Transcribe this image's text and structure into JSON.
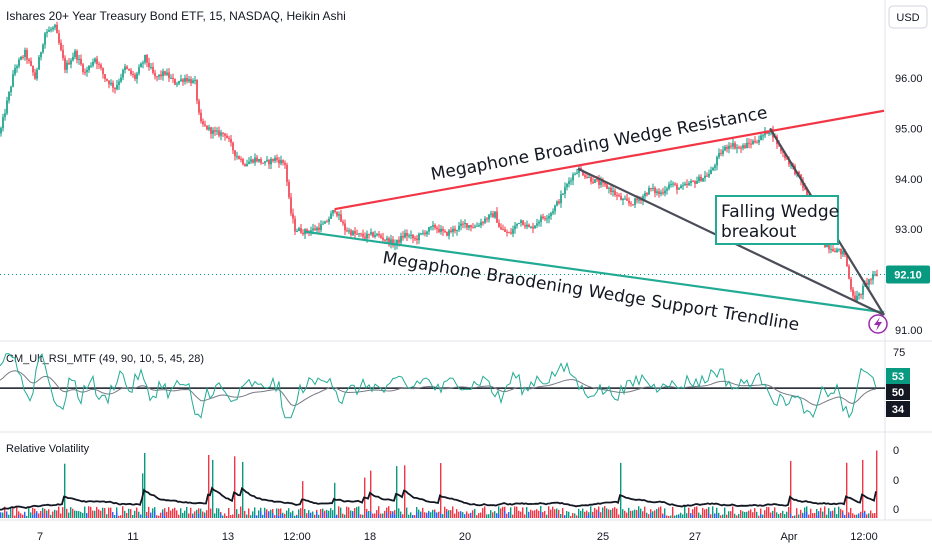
{
  "chart_data": {
    "type": "candlestick",
    "title": "Ishares 20+ Year Treasury Bond ETF, 15, NASDAQ, Heikin Ashi",
    "currency_button": "USD",
    "price_axis": {
      "range": [
        90.8,
        97.4
      ],
      "ticks": [
        "96.00",
        "95.00",
        "94.00",
        "93.00",
        "91.00"
      ],
      "tick_values": [
        96,
        95,
        94,
        93,
        91
      ]
    },
    "time_axis": {
      "labels": [
        "7",
        "11",
        "13",
        "12:00",
        "18",
        "20",
        "25",
        "27",
        "Apr",
        "12:00"
      ]
    },
    "current_price": {
      "label": "92.10",
      "value": 92.1,
      "color": "#089981"
    },
    "price_path": [
      [
        0,
        94.9
      ],
      [
        8,
        95.6
      ],
      [
        15,
        96.2
      ],
      [
        25,
        96.5
      ],
      [
        35,
        96.0
      ],
      [
        45,
        96.9
      ],
      [
        55,
        97.0
      ],
      [
        65,
        96.2
      ],
      [
        75,
        96.5
      ],
      [
        85,
        96.1
      ],
      [
        95,
        96.4
      ],
      [
        105,
        96.0
      ],
      [
        115,
        95.8
      ],
      [
        125,
        96.2
      ],
      [
        135,
        96.0
      ],
      [
        145,
        96.4
      ],
      [
        155,
        96.0
      ],
      [
        165,
        96.1
      ],
      [
        175,
        95.9
      ],
      [
        185,
        96.0
      ],
      [
        195,
        95.9
      ],
      [
        200,
        95.1
      ],
      [
        215,
        94.9
      ],
      [
        225,
        94.9
      ],
      [
        235,
        94.5
      ],
      [
        245,
        94.3
      ],
      [
        255,
        94.4
      ],
      [
        265,
        94.3
      ],
      [
        275,
        94.4
      ],
      [
        285,
        94.3
      ],
      [
        290,
        93.4
      ],
      [
        295,
        93.0
      ],
      [
        305,
        92.95
      ],
      [
        315,
        93.0
      ],
      [
        325,
        93.1
      ],
      [
        335,
        93.4
      ],
      [
        345,
        93.0
      ],
      [
        355,
        92.9
      ],
      [
        365,
        92.85
      ],
      [
        375,
        92.9
      ],
      [
        385,
        92.8
      ],
      [
        395,
        92.7
      ],
      [
        405,
        92.9
      ],
      [
        415,
        92.8
      ],
      [
        425,
        92.95
      ],
      [
        435,
        93.05
      ],
      [
        445,
        92.9
      ],
      [
        455,
        93.0
      ],
      [
        465,
        93.1
      ],
      [
        475,
        93.05
      ],
      [
        485,
        93.2
      ],
      [
        495,
        93.3
      ],
      [
        500,
        93.0
      ],
      [
        510,
        92.9
      ],
      [
        520,
        93.2
      ],
      [
        530,
        93.0
      ],
      [
        540,
        93.2
      ],
      [
        550,
        93.3
      ],
      [
        560,
        93.6
      ],
      [
        570,
        94.0
      ],
      [
        578,
        94.2
      ],
      [
        590,
        94.0
      ],
      [
        600,
        93.9
      ],
      [
        610,
        93.8
      ],
      [
        620,
        93.6
      ],
      [
        630,
        93.5
      ],
      [
        640,
        93.6
      ],
      [
        650,
        93.8
      ],
      [
        660,
        93.7
      ],
      [
        670,
        93.9
      ],
      [
        680,
        93.8
      ],
      [
        690,
        93.9
      ],
      [
        700,
        94.0
      ],
      [
        710,
        94.1
      ],
      [
        720,
        94.5
      ],
      [
        730,
        94.7
      ],
      [
        740,
        94.6
      ],
      [
        750,
        94.7
      ],
      [
        760,
        94.8
      ],
      [
        770,
        95.0
      ],
      [
        780,
        94.6
      ],
      [
        790,
        94.3
      ],
      [
        800,
        94.0
      ],
      [
        810,
        93.5
      ],
      [
        815,
        92.9
      ],
      [
        825,
        92.7
      ],
      [
        835,
        92.6
      ],
      [
        845,
        92.5
      ],
      [
        850,
        91.9
      ],
      [
        855,
        91.6
      ],
      [
        860,
        91.7
      ],
      [
        865,
        91.9
      ],
      [
        870,
        92.0
      ],
      [
        877,
        92.1
      ]
    ],
    "trendlines": [
      {
        "name": "megaphone-resistance",
        "color": "#f23645",
        "p1": [
          335,
          93.4
        ],
        "p2": [
          884,
          95.35
        ]
      },
      {
        "name": "megaphone-support",
        "color": "#22ab94",
        "p1": [
          305,
          92.95
        ],
        "p2": [
          884,
          91.35
        ]
      },
      {
        "name": "falling-wedge-upper-a",
        "color": "#4a4d57",
        "p1": [
          578,
          94.2
        ],
        "p2": [
          884,
          91.3
        ]
      },
      {
        "name": "falling-wedge-upper-b",
        "color": "#4a4d57",
        "p1": [
          770,
          95.0
        ],
        "p2": [
          884,
          91.3
        ]
      }
    ],
    "annotations": {
      "resistance": "Megaphone  Broading Wedge Resistance",
      "support": "Megaphone Braodening Wedge Support Trendline",
      "falling_wedge": [
        "Falling Wedge",
        "breakout"
      ]
    },
    "rsi_pane": {
      "label": "CM_Ult_RSI_MTF (49, 90, 10, 5, 45, 28)",
      "ticks": [
        "75"
      ],
      "badges": [
        {
          "text": "53",
          "color": "#089981"
        },
        {
          "text": "50",
          "color": "#131722"
        },
        {
          "text": "34",
          "color": "#131722"
        }
      ],
      "midline": 50,
      "range": [
        25,
        80
      ]
    },
    "volatility_pane": {
      "label": "Relative Volatility",
      "ticks": [
        "0",
        "0",
        "0"
      ]
    },
    "colors": {
      "up": "#089981",
      "down": "#f23645",
      "rsi_fast": "#22ab94",
      "rsi_slow": "#787b86",
      "vol_line": "#131722",
      "vol_blue": "#2962ff"
    }
  }
}
